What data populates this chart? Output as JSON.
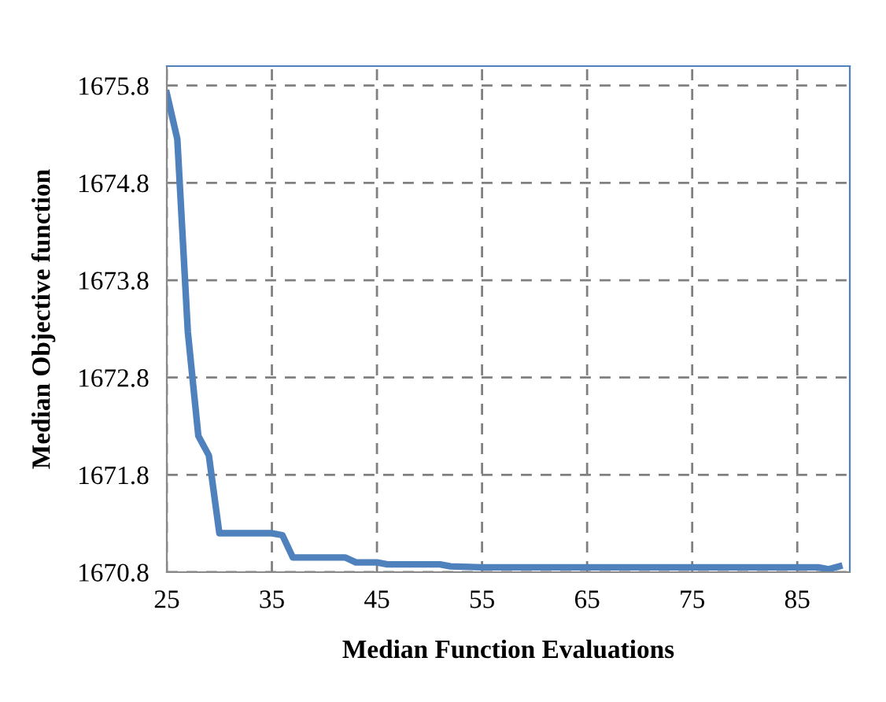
{
  "chart_data": {
    "type": "line",
    "xlabel": "Median Function Evaluations",
    "ylabel": "Median Objective function",
    "series": [
      {
        "color": "#4f81bd",
        "x": [
          25,
          26,
          27,
          28,
          29,
          30,
          35,
          36,
          37,
          42,
          43,
          45,
          46,
          51,
          52,
          55,
          60,
          70,
          80,
          87,
          88,
          89
        ],
        "values": [
          1675.72,
          1675.25,
          1673.27,
          1672.2,
          1672.0,
          1671.2,
          1671.2,
          1671.18,
          1670.95,
          1670.95,
          1670.9,
          1670.9,
          1670.88,
          1670.88,
          1670.86,
          1670.85,
          1670.85,
          1670.85,
          1670.85,
          1670.85,
          1670.83,
          1670.86
        ]
      }
    ],
    "xlim": [
      25,
      90
    ],
    "xticks": [
      25,
      35,
      45,
      55,
      65,
      75,
      85
    ],
    "ylim": [
      1670.8,
      1676.0
    ],
    "yticks": [
      1670.8,
      1671.8,
      1672.8,
      1673.8,
      1674.8,
      1675.8
    ],
    "grid": true,
    "line_style": "solid"
  }
}
